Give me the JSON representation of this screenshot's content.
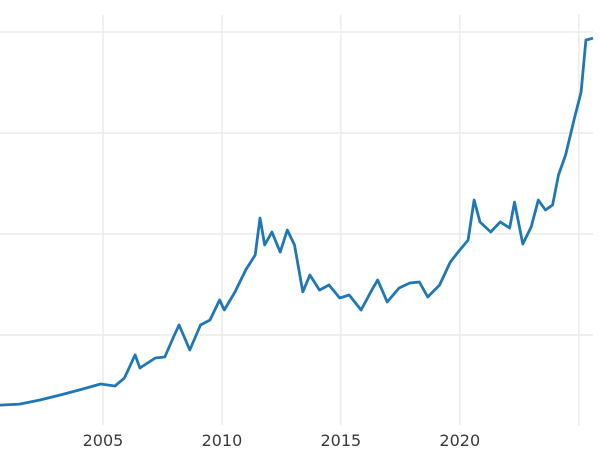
{
  "chart_data": {
    "type": "line",
    "title": "",
    "xlabel": "",
    "ylabel": "",
    "xlim": [
      2000.67,
      2025.6
    ],
    "ylim": [
      245,
      3300
    ],
    "grid": true,
    "x_gridlines": [
      2005,
      2010,
      2015,
      2020,
      2025
    ],
    "y_gridlines": [
      800,
      1600,
      2400,
      3200
    ],
    "x_tick_labels": [
      "2005",
      "2010",
      "2015",
      "2020"
    ],
    "line_color": "#1f77b4",
    "grid_color": "#ebebeb",
    "series": [
      {
        "x": [
          2000.67,
          2001.5,
          2002.35,
          2003.2,
          2004.0,
          2004.9,
          2005.5,
          2005.9,
          2006.35,
          2006.55,
          2007.2,
          2007.6,
          2008.0,
          2008.2,
          2008.65,
          2009.1,
          2009.5,
          2009.9,
          2010.1,
          2010.55,
          2011.0,
          2011.4,
          2011.6,
          2011.8,
          2012.1,
          2012.45,
          2012.75,
          2013.05,
          2013.4,
          2013.7,
          2014.1,
          2014.5,
          2014.95,
          2015.35,
          2015.85,
          2016.3,
          2016.55,
          2016.95,
          2017.45,
          2017.9,
          2018.3,
          2018.65,
          2019.15,
          2019.6,
          2020.0,
          2020.35,
          2020.6,
          2020.85,
          2021.3,
          2021.7,
          2022.1,
          2022.3,
          2022.65,
          2023.0,
          2023.3,
          2023.6,
          2023.9,
          2024.15,
          2024.45,
          2024.8,
          2025.1,
          2025.3,
          2025.6
        ],
        "y": [
          245,
          253,
          285,
          325,
          364,
          412,
          396,
          459,
          642,
          539,
          618,
          626,
          800,
          879,
          681,
          879,
          919,
          1077,
          998,
          1141,
          1315,
          1434,
          1727,
          1513,
          1616,
          1457,
          1632,
          1513,
          1141,
          1275,
          1156,
          1196,
          1093,
          1117,
          998,
          1156,
          1236,
          1061,
          1172,
          1212,
          1220,
          1101,
          1196,
          1378,
          1473,
          1552,
          1869,
          1695,
          1616,
          1695,
          1648,
          1853,
          1521,
          1656,
          1869,
          1790,
          1830,
          2067,
          2226,
          2503,
          2725,
          3136,
          3152
        ]
      }
    ]
  }
}
